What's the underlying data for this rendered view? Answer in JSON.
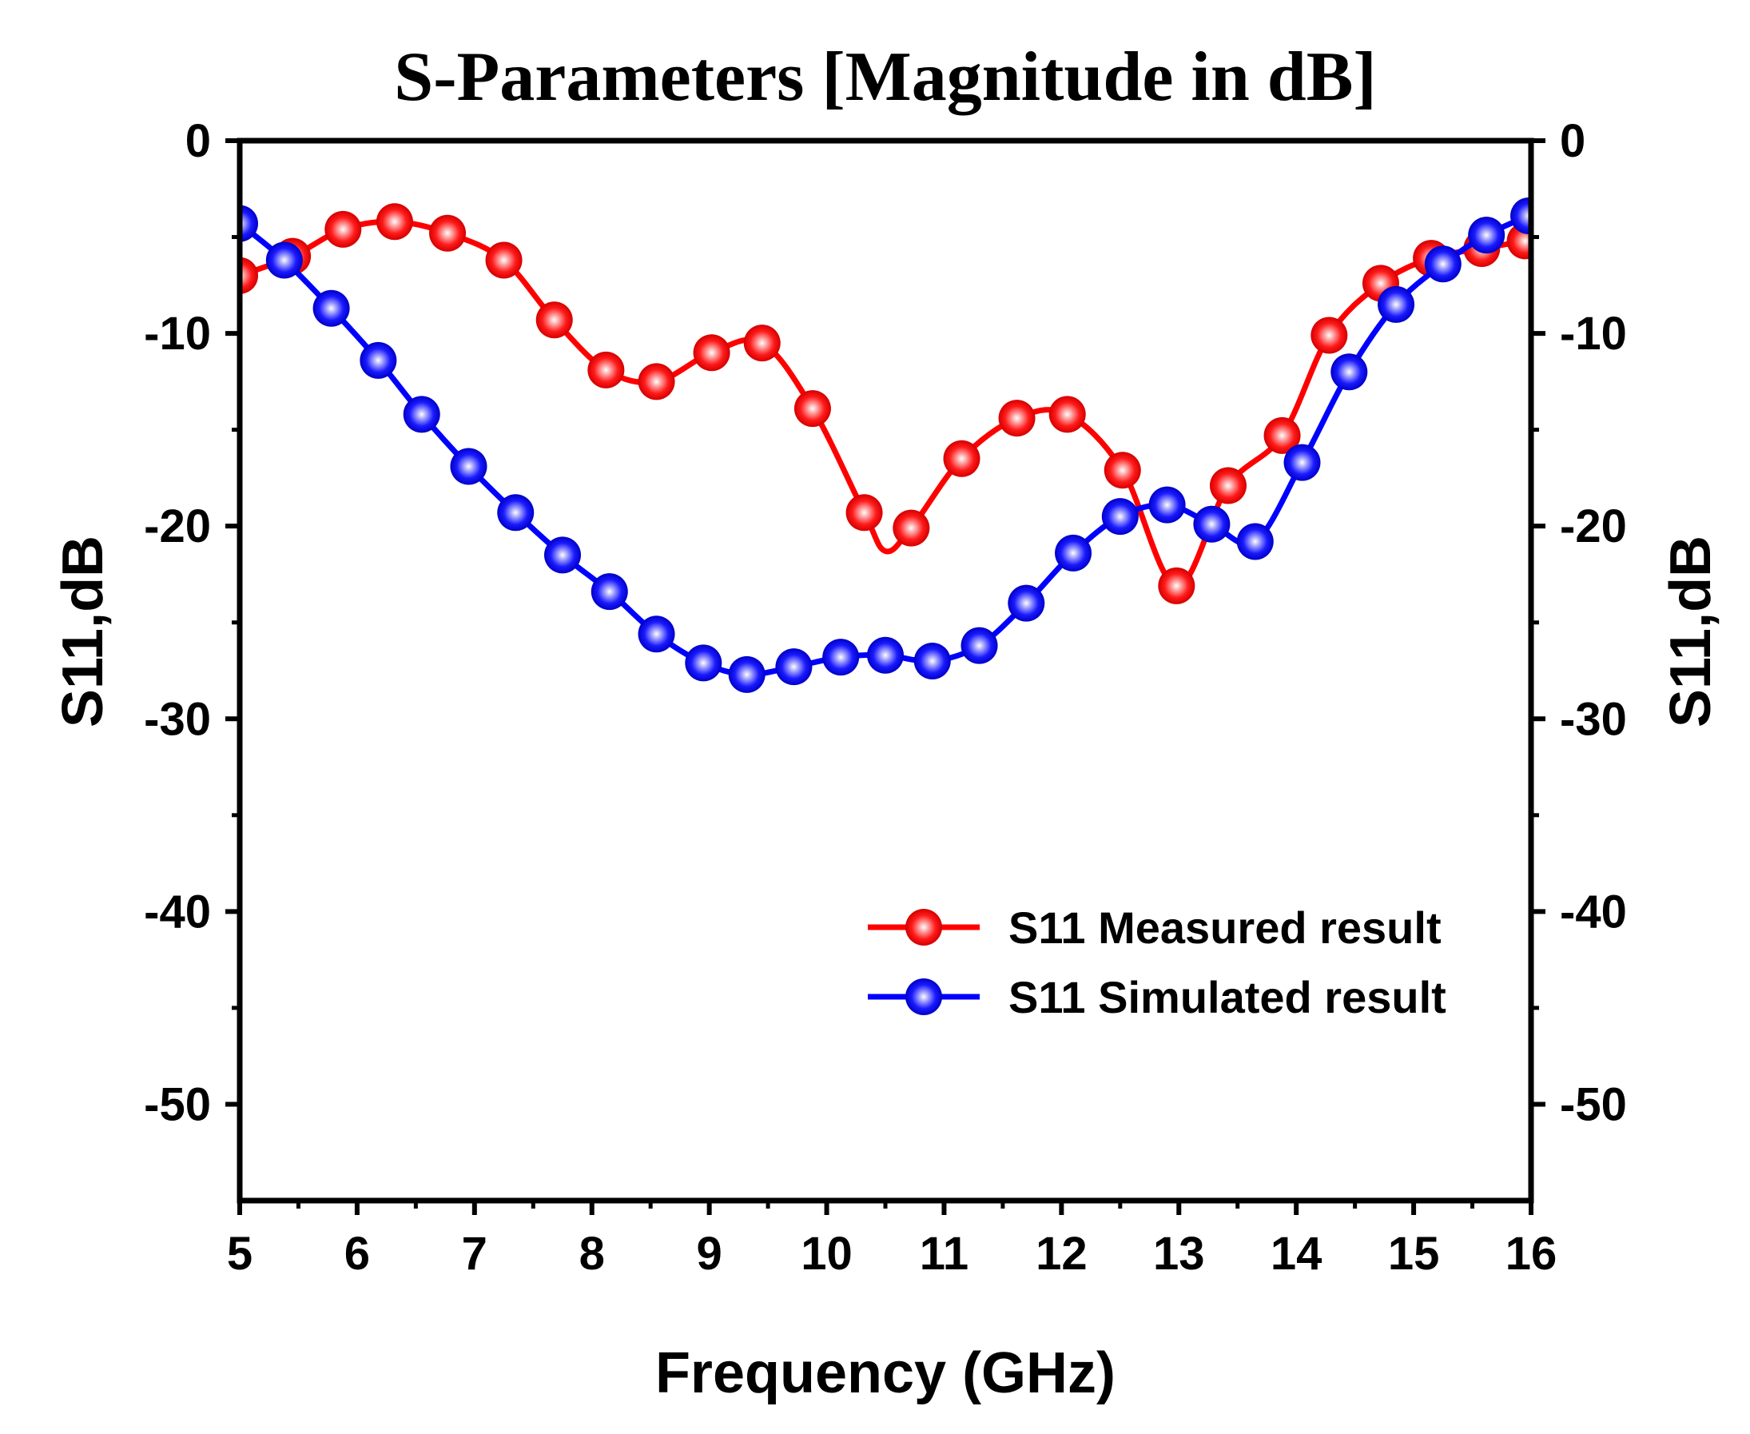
{
  "chart_data": {
    "type": "line",
    "title": "S-Parameters [Magnitude in dB]",
    "xlabel": "Frequency (GHz)",
    "ylabel": "S11,dB",
    "ylabel_right": "S11,dB",
    "xlim": [
      5,
      16
    ],
    "ylim": [
      -55,
      0
    ],
    "xticks": [
      5,
      6,
      7,
      8,
      9,
      10,
      11,
      12,
      13,
      14,
      15,
      16
    ],
    "yticks": [
      0,
      -10,
      -20,
      -30,
      -40,
      -50
    ],
    "grid": false,
    "legend_position": "lower-right",
    "series": [
      {
        "name": "S11 Measured result",
        "color": "#ff0000",
        "x": [
          5.0,
          5.45,
          5.88,
          6.32,
          6.77,
          7.25,
          7.68,
          8.12,
          8.55,
          9.02,
          9.45,
          9.88,
          10.32,
          10.5,
          10.72,
          11.15,
          11.62,
          12.05,
          12.52,
          12.98,
          13.42,
          13.88,
          14.28,
          14.72,
          15.15,
          15.58,
          15.95
        ],
        "y": [
          -7.0,
          -6.0,
          -4.6,
          -4.2,
          -4.8,
          -6.2,
          -9.3,
          -11.9,
          -12.5,
          -11.0,
          -10.5,
          -13.9,
          -19.3,
          -21.3,
          -20.1,
          -16.5,
          -14.4,
          -14.2,
          -17.1,
          -23.1,
          -17.9,
          -15.3,
          -10.1,
          -7.4,
          -6.1,
          -5.6,
          -5.2
        ],
        "markers": [
          true,
          true,
          true,
          true,
          true,
          true,
          true,
          true,
          true,
          true,
          true,
          true,
          true,
          false,
          true,
          true,
          true,
          true,
          true,
          true,
          true,
          true,
          true,
          true,
          true,
          true,
          true
        ]
      },
      {
        "name": "S11 Simulated result",
        "color": "#0000ff",
        "x": [
          5.0,
          5.38,
          5.78,
          6.18,
          6.55,
          6.95,
          7.35,
          7.75,
          8.15,
          8.55,
          8.95,
          9.32,
          9.72,
          10.12,
          10.5,
          10.9,
          11.3,
          11.7,
          12.1,
          12.5,
          12.9,
          13.28,
          13.65,
          14.05,
          14.45,
          14.85,
          15.25,
          15.62,
          15.98
        ],
        "y": [
          -4.3,
          -6.2,
          -8.7,
          -11.4,
          -14.2,
          -16.9,
          -19.3,
          -21.5,
          -23.4,
          -25.6,
          -27.1,
          -27.7,
          -27.3,
          -26.8,
          -26.7,
          -27.0,
          -26.2,
          -24.0,
          -21.4,
          -19.5,
          -18.9,
          -19.9,
          -20.8,
          -16.7,
          -12.0,
          -8.5,
          -6.4,
          -4.9,
          -3.9
        ],
        "markers": [
          true,
          true,
          true,
          true,
          true,
          true,
          true,
          true,
          true,
          true,
          true,
          true,
          true,
          true,
          true,
          true,
          true,
          true,
          true,
          true,
          true,
          true,
          true,
          true,
          true,
          true,
          true,
          true,
          true
        ]
      }
    ]
  }
}
